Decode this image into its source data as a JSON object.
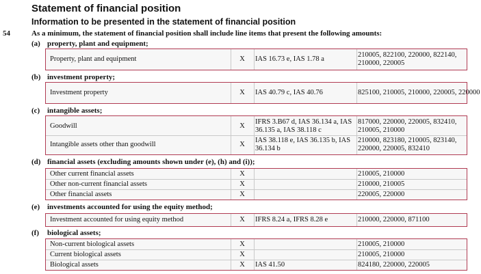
{
  "heading": "Statement of financial position",
  "subheading": "Information to be presented in the statement of financial position",
  "paragraph": {
    "number": "54",
    "text": "As a minimum, the statement of financial position shall include line items that present the following amounts:"
  },
  "sections": [
    {
      "letter": "(a)",
      "title": "property, plant and equipment;",
      "rows": [
        {
          "label": "Property, plant and equipment",
          "x": "X",
          "ref": "IAS 16.73 e, IAS 1.78 a",
          "codes": "210005, 822100, 220000, 822140, 210000, 220005"
        }
      ]
    },
    {
      "letter": "(b)",
      "title": "investment property;",
      "rows": [
        {
          "label": "Investment property",
          "x": "X",
          "ref": "IAS 40.79 c, IAS 40.76",
          "codes": "825100, 210005, 210000, 220005, 220000"
        }
      ]
    },
    {
      "letter": "(c)",
      "title": "intangible assets;",
      "rows": [
        {
          "label": "Goodwill",
          "x": "X",
          "ref": "IFRS 3.B67 d, IAS 36.134 a, IAS 36.135 a, IAS 38.118 c",
          "codes": "817000, 220000, 220005, 832410, 210005, 210000"
        },
        {
          "label": "Intangible assets other than goodwill",
          "x": "X",
          "ref": "IAS 38.118 e, IAS 36.135 b, IAS 36.134 b",
          "codes": "210000, 823180, 210005, 823140, 220000, 220005, 832410"
        }
      ]
    },
    {
      "letter": "(d)",
      "title": "financial assets (excluding amounts shown under (e), (h) and (i));",
      "rows": [
        {
          "label": "Other current financial assets",
          "x": "X",
          "ref": "",
          "codes": "210005, 210000"
        },
        {
          "label": "Other non-current financial assets",
          "x": "X",
          "ref": "",
          "codes": "210000, 210005"
        },
        {
          "label": "Other financial assets",
          "x": "X",
          "ref": "",
          "codes": "220005, 220000"
        }
      ]
    },
    {
      "letter": "(e)",
      "title": "investments accounted for using the equity method;",
      "rows": [
        {
          "label": "Investment accounted for using equity method",
          "x": "X",
          "ref": "IFRS 8.24 a, IFRS 8.28 e",
          "codes": "210000, 220000, 871100"
        }
      ]
    },
    {
      "letter": "(f)",
      "title": "biological assets;",
      "rows": [
        {
          "label": "Non-current biological assets",
          "x": "X",
          "ref": "",
          "codes": "210005, 210000"
        },
        {
          "label": "Current biological assets",
          "x": "X",
          "ref": "",
          "codes": "210005, 210000"
        },
        {
          "label": "Biological assets",
          "x": "X",
          "ref": "IAS 41.50",
          "codes": "824180, 220000, 220005"
        }
      ]
    }
  ]
}
